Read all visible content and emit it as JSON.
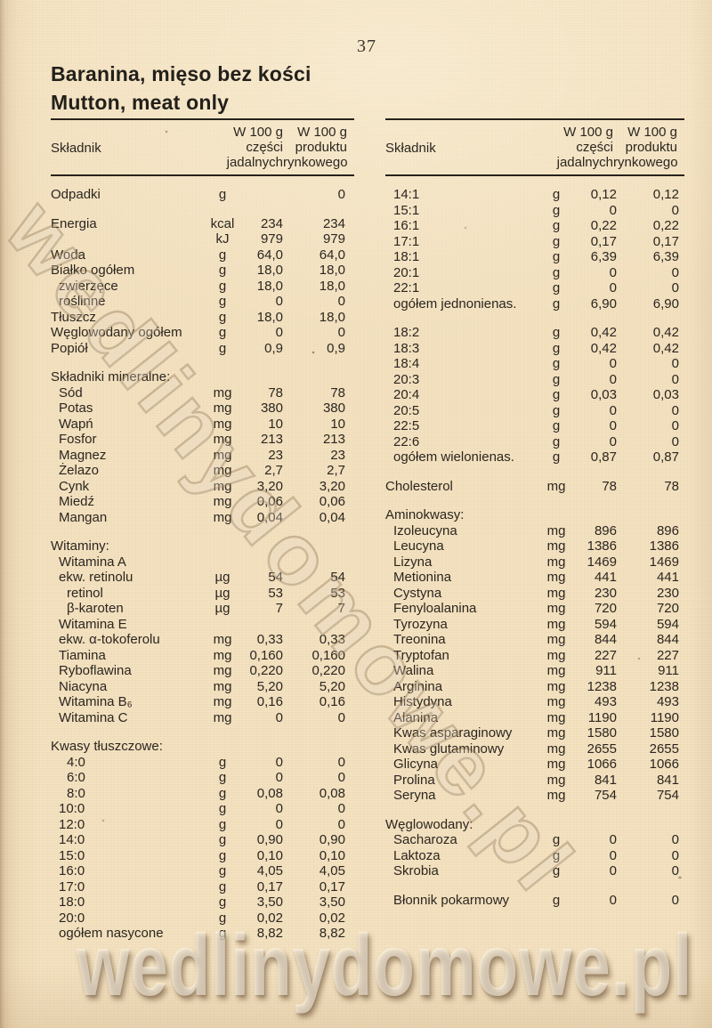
{
  "page": {
    "number": "37"
  },
  "title": {
    "polish": "Baranina, mięso bez kości",
    "english": "Mutton, meat only"
  },
  "columns": {
    "ingredient": "Składnik",
    "per100_edible": "W 100 g\nczęści\njadalnych",
    "per100_market": "W 100 g\nproduktu\nrynkowego"
  },
  "watermark": {
    "text": "wedlinydomowe.pl"
  },
  "colors": {
    "paper": "#f3e1bf",
    "ink": "#2b2620",
    "rule": "#26221c",
    "watermark_outline": "#806444",
    "watermark_bottom": "#fffaee"
  },
  "left_table": {
    "rows": [
      {
        "label": "Odpadki",
        "unit": "g",
        "v1": "",
        "v2": "0"
      },
      {
        "label": "Energia",
        "unit": "kcal",
        "v1": "234",
        "v2": "234",
        "gap": true
      },
      {
        "label": "",
        "unit": "kJ",
        "v1": "979",
        "v2": "979"
      },
      {
        "label": "Woda",
        "unit": "g",
        "v1": "64,0",
        "v2": "64,0"
      },
      {
        "label": "Białko ogółem",
        "unit": "g",
        "v1": "18,0",
        "v2": "18,0"
      },
      {
        "label": "zwierzęce",
        "indent": 1,
        "unit": "g",
        "v1": "18,0",
        "v2": "18,0"
      },
      {
        "label": "roślinne",
        "indent": 1,
        "unit": "g",
        "v1": "0",
        "v2": "0"
      },
      {
        "label": "Tłuszcz",
        "unit": "g",
        "v1": "18,0",
        "v2": "18,0"
      },
      {
        "label": "Węglowodany ogółem",
        "unit": "g",
        "v1": "0",
        "v2": "0"
      },
      {
        "label": "Popiół",
        "unit": "g",
        "v1": "0,9",
        "v2": "0,9"
      },
      {
        "label": "Składniki mineralne:",
        "section": true,
        "gap": true
      },
      {
        "label": "Sód",
        "indent": 1,
        "unit": "mg",
        "v1": "78",
        "v2": "78"
      },
      {
        "label": "Potas",
        "indent": 1,
        "unit": "mg",
        "v1": "380",
        "v2": "380"
      },
      {
        "label": "Wapń",
        "indent": 1,
        "unit": "mg",
        "v1": "10",
        "v2": "10"
      },
      {
        "label": "Fosfor",
        "indent": 1,
        "unit": "mg",
        "v1": "213",
        "v2": "213"
      },
      {
        "label": "Magnez",
        "indent": 1,
        "unit": "mg",
        "v1": "23",
        "v2": "23"
      },
      {
        "label": "Żelazo",
        "indent": 1,
        "unit": "mg",
        "v1": "2,7",
        "v2": "2,7"
      },
      {
        "label": "Cynk",
        "indent": 1,
        "unit": "mg",
        "v1": "3,20",
        "v2": "3,20"
      },
      {
        "label": "Miedź",
        "indent": 1,
        "unit": "mg",
        "v1": "0,06",
        "v2": "0,06"
      },
      {
        "label": "Mangan",
        "indent": 1,
        "unit": "mg",
        "v1": "0,04",
        "v2": "0,04"
      },
      {
        "label": "Witaminy:",
        "section": true,
        "gap": true
      },
      {
        "label": "Witamina A",
        "indent": 1
      },
      {
        "label": "ekw. retinolu",
        "indent": 1,
        "unit": "µg",
        "v1": "54",
        "v2": "54"
      },
      {
        "label": "retinol",
        "indent": 2,
        "unit": "µg",
        "v1": "53",
        "v2": "53"
      },
      {
        "label": "β-karoten",
        "indent": 2,
        "unit": "µg",
        "v1": "7",
        "v2": "7"
      },
      {
        "label": "Witamina E",
        "indent": 1
      },
      {
        "label": "ekw. α-tokoferolu",
        "indent": 1,
        "unit": "mg",
        "v1": "0,33",
        "v2": "0,33"
      },
      {
        "label": "Tiamina",
        "indent": 1,
        "unit": "mg",
        "v1": "0,160",
        "v2": "0,160"
      },
      {
        "label": "Ryboflawina",
        "indent": 1,
        "unit": "mg",
        "v1": "0,220",
        "v2": "0,220"
      },
      {
        "label": "Niacyna",
        "indent": 1,
        "unit": "mg",
        "v1": "5,20",
        "v2": "5,20"
      },
      {
        "label": "Witamina B₆",
        "indent": 1,
        "unit": "mg",
        "v1": "0,16",
        "v2": "0,16"
      },
      {
        "label": "Witamina C",
        "indent": 1,
        "unit": "mg",
        "v1": "0",
        "v2": "0"
      },
      {
        "label": "Kwasy tłuszczowe:",
        "section": true,
        "gap": true
      },
      {
        "label": "4:0",
        "indent": 2,
        "unit": "g",
        "v1": "0",
        "v2": "0"
      },
      {
        "label": "6:0",
        "indent": 2,
        "unit": "g",
        "v1": "0",
        "v2": "0"
      },
      {
        "label": "8:0",
        "indent": 2,
        "unit": "g",
        "v1": "0,08",
        "v2": "0,08"
      },
      {
        "label": "10:0",
        "indent": 1,
        "unit": "g",
        "v1": "0",
        "v2": "0"
      },
      {
        "label": "12:0",
        "indent": 1,
        "unit": "g",
        "v1": "0",
        "v2": "0"
      },
      {
        "label": "14:0",
        "indent": 1,
        "unit": "g",
        "v1": "0,90",
        "v2": "0,90"
      },
      {
        "label": "15:0",
        "indent": 1,
        "unit": "g",
        "v1": "0,10",
        "v2": "0,10"
      },
      {
        "label": "16:0",
        "indent": 1,
        "unit": "g",
        "v1": "4,05",
        "v2": "4,05"
      },
      {
        "label": "17:0",
        "indent": 1,
        "unit": "g",
        "v1": "0,17",
        "v2": "0,17"
      },
      {
        "label": "18:0",
        "indent": 1,
        "unit": "g",
        "v1": "3,50",
        "v2": "3,50"
      },
      {
        "label": "20:0",
        "indent": 1,
        "unit": "g",
        "v1": "0,02",
        "v2": "0,02"
      },
      {
        "label": "ogółem nasycone",
        "indent": 1,
        "unit": "g",
        "v1": "8,82",
        "v2": "8,82"
      }
    ]
  },
  "right_table": {
    "rows": [
      {
        "label": "14:1",
        "indent": 1,
        "unit": "g",
        "v1": "0,12",
        "v2": "0,12"
      },
      {
        "label": "15:1",
        "indent": 1,
        "unit": "g",
        "v1": "0",
        "v2": "0"
      },
      {
        "label": "16:1",
        "indent": 1,
        "unit": "g",
        "v1": "0,22",
        "v2": "0,22"
      },
      {
        "label": "17:1",
        "indent": 1,
        "unit": "g",
        "v1": "0,17",
        "v2": "0,17"
      },
      {
        "label": "18:1",
        "indent": 1,
        "unit": "g",
        "v1": "6,39",
        "v2": "6,39"
      },
      {
        "label": "20:1",
        "indent": 1,
        "unit": "g",
        "v1": "0",
        "v2": "0"
      },
      {
        "label": "22:1",
        "indent": 1,
        "unit": "g",
        "v1": "0",
        "v2": "0"
      },
      {
        "label": "ogółem jednonienas.",
        "indent": 1,
        "unit": "g",
        "v1": "6,90",
        "v2": "6,90"
      },
      {
        "label": "18:2",
        "indent": 1,
        "unit": "g",
        "v1": "0,42",
        "v2": "0,42",
        "gap": true
      },
      {
        "label": "18:3",
        "indent": 1,
        "unit": "g",
        "v1": "0,42",
        "v2": "0,42"
      },
      {
        "label": "18:4",
        "indent": 1,
        "unit": "g",
        "v1": "0",
        "v2": "0"
      },
      {
        "label": "20:3",
        "indent": 1,
        "unit": "g",
        "v1": "0",
        "v2": "0"
      },
      {
        "label": "20:4",
        "indent": 1,
        "unit": "g",
        "v1": "0,03",
        "v2": "0,03"
      },
      {
        "label": "20:5",
        "indent": 1,
        "unit": "g",
        "v1": "0",
        "v2": "0"
      },
      {
        "label": "22:5",
        "indent": 1,
        "unit": "g",
        "v1": "0",
        "v2": "0"
      },
      {
        "label": "22:6",
        "indent": 1,
        "unit": "g",
        "v1": "0",
        "v2": "0"
      },
      {
        "label": "ogółem wielonienas.",
        "indent": 1,
        "unit": "g",
        "v1": "0,87",
        "v2": "0,87"
      },
      {
        "label": "Cholesterol",
        "unit": "mg",
        "v1": "78",
        "v2": "78",
        "gap": true
      },
      {
        "label": "Aminokwasy:",
        "section": true,
        "gap": true
      },
      {
        "label": "Izoleucyna",
        "indent": 1,
        "unit": "mg",
        "v1": "896",
        "v2": "896"
      },
      {
        "label": "Leucyna",
        "indent": 1,
        "unit": "mg",
        "v1": "1386",
        "v2": "1386"
      },
      {
        "label": "Lizyna",
        "indent": 1,
        "unit": "mg",
        "v1": "1469",
        "v2": "1469"
      },
      {
        "label": "Metionina",
        "indent": 1,
        "unit": "mg",
        "v1": "441",
        "v2": "441"
      },
      {
        "label": "Cystyna",
        "indent": 1,
        "unit": "mg",
        "v1": "230",
        "v2": "230"
      },
      {
        "label": "Fenyloalanina",
        "indent": 1,
        "unit": "mg",
        "v1": "720",
        "v2": "720"
      },
      {
        "label": "Tyrozyna",
        "indent": 1,
        "unit": "mg",
        "v1": "594",
        "v2": "594"
      },
      {
        "label": "Treonina",
        "indent": 1,
        "unit": "mg",
        "v1": "844",
        "v2": "844"
      },
      {
        "label": "Tryptofan",
        "indent": 1,
        "unit": "mg",
        "v1": "227",
        "v2": "227"
      },
      {
        "label": "Walina",
        "indent": 1,
        "unit": "mg",
        "v1": "911",
        "v2": "911"
      },
      {
        "label": "Arginina",
        "indent": 1,
        "unit": "mg",
        "v1": "1238",
        "v2": "1238"
      },
      {
        "label": "Histydyna",
        "indent": 1,
        "unit": "mg",
        "v1": "493",
        "v2": "493"
      },
      {
        "label": "Alanina",
        "indent": 1,
        "unit": "mg",
        "v1": "1190",
        "v2": "1190"
      },
      {
        "label": "Kwas asparaginowy",
        "indent": 1,
        "unit": "mg",
        "v1": "1580",
        "v2": "1580"
      },
      {
        "label": "Kwas glutaminowy",
        "indent": 1,
        "unit": "mg",
        "v1": "2655",
        "v2": "2655"
      },
      {
        "label": "Glicyna",
        "indent": 1,
        "unit": "mg",
        "v1": "1066",
        "v2": "1066"
      },
      {
        "label": "Prolina",
        "indent": 1,
        "unit": "mg",
        "v1": "841",
        "v2": "841"
      },
      {
        "label": "Seryna",
        "indent": 1,
        "unit": "mg",
        "v1": "754",
        "v2": "754"
      },
      {
        "label": "Węglowodany:",
        "section": true,
        "gap": true
      },
      {
        "label": "Sacharoza",
        "indent": 1,
        "unit": "g",
        "v1": "0",
        "v2": "0"
      },
      {
        "label": "Laktoza",
        "indent": 1,
        "unit": "g",
        "v1": "0",
        "v2": "0"
      },
      {
        "label": "Skrobia",
        "indent": 1,
        "unit": "g",
        "v1": "0",
        "v2": "0"
      },
      {
        "label": "Błonnik pokarmowy",
        "indent": 1,
        "unit": "g",
        "v1": "0",
        "v2": "0",
        "gap": true
      }
    ]
  }
}
